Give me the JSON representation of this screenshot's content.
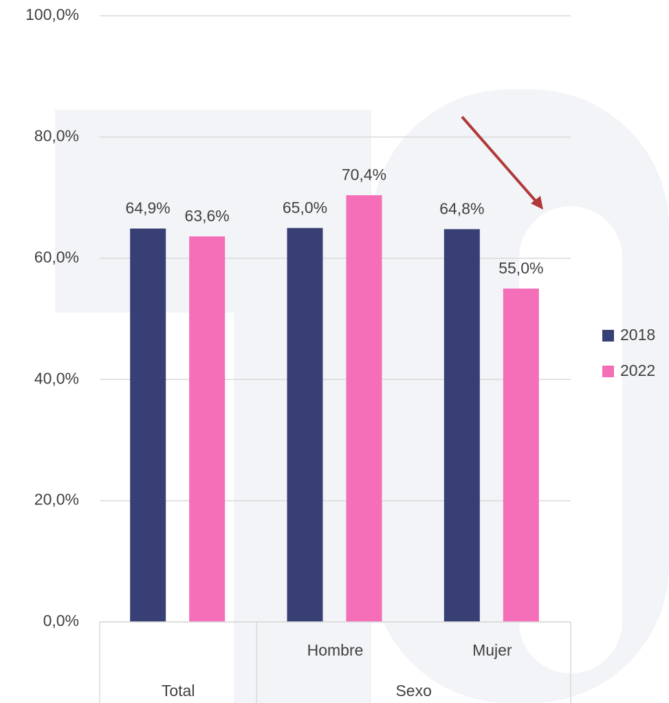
{
  "chart_data": {
    "type": "bar",
    "categories": [
      null,
      "Hombre",
      "Mujer"
    ],
    "groups": [
      {
        "name": "Total",
        "size": 1
      },
      {
        "name": "Sexo",
        "size": 2
      }
    ],
    "series": [
      {
        "name": "2018",
        "color": "#383f75",
        "values": [
          64.9,
          65.0,
          64.8
        ],
        "value_labels": [
          "64,9%",
          "65,0%",
          "64,8%"
        ]
      },
      {
        "name": "2022",
        "color": "#f46eb8",
        "values": [
          63.6,
          70.4,
          55.0
        ],
        "value_labels": [
          "63,6%",
          "70,4%",
          "55,0%"
        ]
      }
    ],
    "ylim": [
      0,
      100
    ],
    "yticks": [
      {
        "value": 0,
        "label": "0,0%"
      },
      {
        "value": 20,
        "label": "20,0%"
      },
      {
        "value": 40,
        "label": "40,0%"
      },
      {
        "value": 60,
        "label": "60,0%"
      },
      {
        "value": 80,
        "label": "80,0%"
      },
      {
        "value": 100,
        "label": "100,0%"
      }
    ],
    "grid": true,
    "legend": "right"
  }
}
